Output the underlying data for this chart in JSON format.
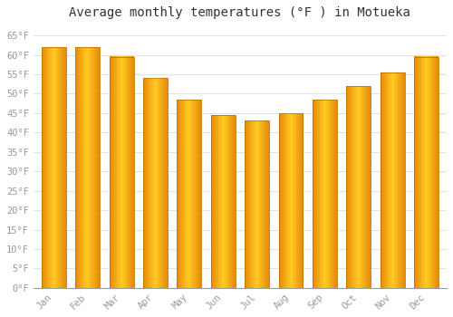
{
  "title": "Average monthly temperatures (°F ) in Motueka",
  "months": [
    "Jan",
    "Feb",
    "Mar",
    "Apr",
    "May",
    "Jun",
    "Jul",
    "Aug",
    "Sep",
    "Oct",
    "Nov",
    "Dec"
  ],
  "values": [
    62,
    62,
    59.5,
    54,
    48.5,
    44.5,
    43,
    45,
    48.5,
    52,
    55.5,
    59.5
  ],
  "bar_color_left": "#E8890A",
  "bar_color_center": "#FFCC22",
  "bar_color_right": "#E8890A",
  "bar_edge_color": "#C07800",
  "ylim": [
    0,
    68
  ],
  "yticks": [
    0,
    5,
    10,
    15,
    20,
    25,
    30,
    35,
    40,
    45,
    50,
    55,
    60,
    65
  ],
  "background_color": "#ffffff",
  "grid_color": "#dddddd",
  "title_fontsize": 10,
  "tick_fontsize": 7.5,
  "tick_color": "#999999",
  "font_family": "monospace"
}
